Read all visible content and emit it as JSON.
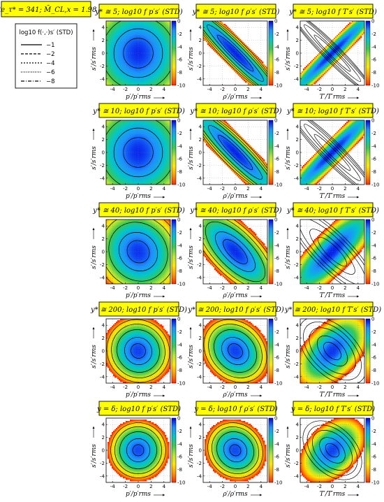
{
  "header": {
    "re_label": "Re_τ* = 341;  M̄_CL,x = 1.98"
  },
  "legend": {
    "title": "log10 f(·,·)s′ (STD)",
    "entries": [
      "−1",
      "−2",
      "−4",
      "−6",
      "−8"
    ]
  },
  "colorbar": {
    "ticks": [
      "0",
      "-2",
      "-4",
      "-6",
      "-8",
      "-10"
    ],
    "range": [
      -10,
      0
    ],
    "colors": [
      "#0000e6",
      "#1e90ff",
      "#00c8c8",
      "#3cc850",
      "#b4e632",
      "#ffe600",
      "#ff9600",
      "#ff2800"
    ]
  },
  "axes": {
    "xticks": [
      "-4",
      "-2",
      "0",
      "2",
      "4"
    ],
    "yticks": [
      "4",
      "2",
      "0",
      "-2",
      "-4"
    ],
    "xlabels": [
      "p′/p′rms",
      "ρ′/ρ′rms",
      "T′/T′rms"
    ],
    "ylabel": "s′/s′rms"
  },
  "chart_data": {
    "type": "heatmap",
    "quantity": "log10 f(STD)",
    "variables": [
      "p′s′",
      "ρ′s′",
      "T′s′"
    ],
    "rows": [
      "y* ≅ 5",
      "y* ≅ 10",
      "y* ≅ 40",
      "y* ≅ 200",
      "y = δ"
    ],
    "xlim": [
      -5,
      5
    ],
    "ylim": [
      -5,
      5
    ],
    "color_range": [
      -10,
      0
    ],
    "contour_levels": [
      -1,
      -2,
      -4,
      -6,
      -8
    ],
    "panels": [
      {
        "row": "y* ≅ 5",
        "col": "p′s′",
        "title": "y* ≅ 5;  log10 f p′s′ (STD)",
        "corr": 0.0,
        "sx": 0.45,
        "sy": 0.3,
        "peak": -0.4
      },
      {
        "row": "y* ≅ 5",
        "col": "ρ′s′",
        "title": "y* ≅ 5;  log10 f ρ′s′ (STD)",
        "corr": -0.96,
        "sx": 0.4,
        "sy": 0.4,
        "peak": -0.3
      },
      {
        "row": "y* ≅ 5",
        "col": "T′s′",
        "title": "y* ≅ 5;  log10 f T′s′ (STD)",
        "corr": 0.98,
        "sx": 0.4,
        "sy": 0.4,
        "peak": -0.3
      },
      {
        "row": "y* ≅ 10",
        "col": "p′s′",
        "title": "y* ≅ 10;  log10 f p′s′ (STD)",
        "corr": 0.0,
        "sx": 0.45,
        "sy": 0.32,
        "peak": -0.4
      },
      {
        "row": "y* ≅ 10",
        "col": "ρ′s′",
        "title": "y* ≅ 10;  log10 f ρ′s′ (STD)",
        "corr": -0.94,
        "sx": 0.42,
        "sy": 0.42,
        "peak": -0.3
      },
      {
        "row": "y* ≅ 10",
        "col": "T′s′",
        "title": "y* ≅ 10;  log10 f T′s′ (STD)",
        "corr": 0.97,
        "sx": 0.4,
        "sy": 0.4,
        "peak": -0.3
      },
      {
        "row": "y* ≅ 40",
        "col": "p′s′",
        "title": "y* ≅ 40;  log10 f p′s′ (STD)",
        "corr": -0.1,
        "sx": 0.55,
        "sy": 0.5,
        "peak": -0.5
      },
      {
        "row": "y* ≅ 40",
        "col": "ρ′s′",
        "title": "y* ≅ 40;  log10 f ρ′s′ (STD)",
        "corr": -0.7,
        "sx": 0.55,
        "sy": 0.55,
        "peak": -0.4
      },
      {
        "row": "y* ≅ 40",
        "col": "T′s′",
        "title": "y* ≅ 40;  log10 f T′s′ (STD)",
        "corr": 0.85,
        "sx": 0.5,
        "sy": 0.5,
        "peak": -0.3
      },
      {
        "row": "y* ≅ 200",
        "col": "p′s′",
        "title": "y* ≅ 200;  log10 f p′s′ (STD)",
        "corr": -0.05,
        "sx": 0.75,
        "sy": 0.7,
        "peak": -0.6
      },
      {
        "row": "y* ≅ 200",
        "col": "ρ′s′",
        "title": "y* ≅ 200;  log10 f ρ′s′ (STD)",
        "corr": -0.2,
        "sx": 0.75,
        "sy": 0.7,
        "peak": -0.6
      },
      {
        "row": "y* ≅ 200",
        "col": "T′s′",
        "title": "y* ≅ 200;  log10 f T′s′ (STD)",
        "corr": 0.5,
        "sx": 0.7,
        "sy": 0.7,
        "peak": -0.5
      },
      {
        "row": "y = δ",
        "col": "p′s′",
        "title": "y = δ;  log10 f p′s′ (STD)",
        "corr": 0.0,
        "sx": 0.85,
        "sy": 0.85,
        "peak": -0.7
      },
      {
        "row": "y = δ",
        "col": "ρ′s′",
        "title": "y = δ;  log10 f ρ′s′ (STD)",
        "corr": -0.1,
        "sx": 0.85,
        "sy": 0.85,
        "peak": -0.7
      },
      {
        "row": "y = δ",
        "col": "T′s′",
        "title": "y = δ;  log10 f T′s′ (STD)",
        "corr": 0.4,
        "sx": 0.8,
        "sy": 0.8,
        "peak": -0.6
      }
    ]
  }
}
